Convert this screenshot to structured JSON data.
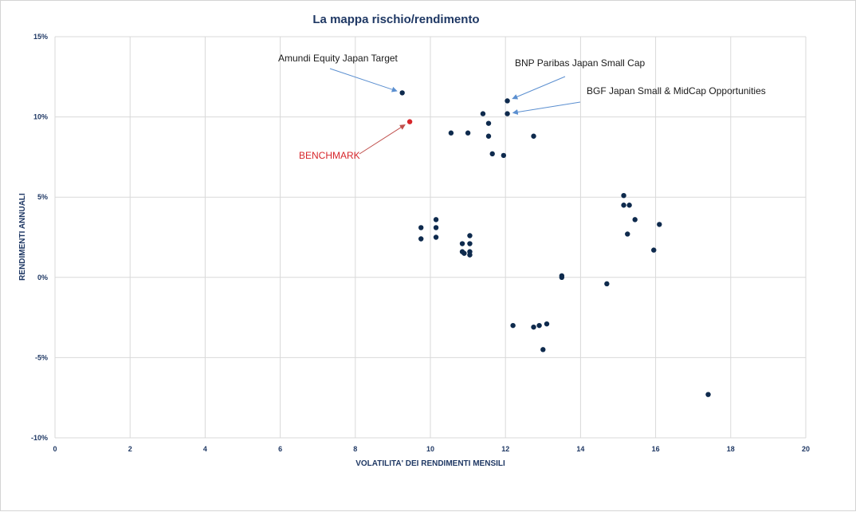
{
  "chart_data": {
    "type": "scatter",
    "title": "La mappa rischio/rendimento",
    "xlabel": "VOLATILITA' DEI RENDIMENTI MENSILI",
    "ylabel": "RENDIMENTI ANNUALI",
    "xlim": [
      0,
      20
    ],
    "ylim": [
      -10,
      15
    ],
    "grid": true,
    "x_ticks": [
      0,
      2,
      4,
      6,
      8,
      10,
      12,
      14,
      16,
      18,
      20
    ],
    "y_ticks": [
      -10,
      -5,
      0,
      5,
      10,
      15
    ],
    "x_tick_labels": [
      "0",
      "2",
      "4",
      "6",
      "8",
      "10",
      "12",
      "14",
      "16",
      "18",
      "20"
    ],
    "y_tick_labels": [
      "-10%",
      "-5%",
      "0%",
      "5%",
      "10%",
      "15%"
    ],
    "colors": {
      "points": "#0e2a4d",
      "benchmark": "#d7262b",
      "grid": "#d9d9d9",
      "arrow": "#5b8fd0",
      "benchmark_arrow": "#c0504d"
    },
    "points": [
      {
        "x": 9.25,
        "y": 11.5
      },
      {
        "x": 12.05,
        "y": 11.0
      },
      {
        "x": 12.05,
        "y": 10.2
      },
      {
        "x": 11.4,
        "y": 10.2
      },
      {
        "x": 11.55,
        "y": 9.6
      },
      {
        "x": 10.55,
        "y": 9.0
      },
      {
        "x": 11.0,
        "y": 9.0
      },
      {
        "x": 11.55,
        "y": 8.8
      },
      {
        "x": 12.75,
        "y": 8.8
      },
      {
        "x": 11.65,
        "y": 7.7
      },
      {
        "x": 11.95,
        "y": 7.6
      },
      {
        "x": 15.15,
        "y": 5.1
      },
      {
        "x": 15.15,
        "y": 4.5
      },
      {
        "x": 15.3,
        "y": 4.5
      },
      {
        "x": 15.45,
        "y": 3.6
      },
      {
        "x": 16.1,
        "y": 3.3
      },
      {
        "x": 15.25,
        "y": 2.7
      },
      {
        "x": 15.95,
        "y": 1.7
      },
      {
        "x": 10.15,
        "y": 3.6
      },
      {
        "x": 10.15,
        "y": 3.1
      },
      {
        "x": 9.75,
        "y": 3.1
      },
      {
        "x": 11.05,
        "y": 2.6
      },
      {
        "x": 10.15,
        "y": 2.5
      },
      {
        "x": 9.75,
        "y": 2.4
      },
      {
        "x": 10.85,
        "y": 2.1
      },
      {
        "x": 11.05,
        "y": 2.1
      },
      {
        "x": 10.85,
        "y": 1.6
      },
      {
        "x": 10.9,
        "y": 1.5
      },
      {
        "x": 11.05,
        "y": 1.6
      },
      {
        "x": 11.05,
        "y": 1.4
      },
      {
        "x": 13.5,
        "y": 0.1
      },
      {
        "x": 13.5,
        "y": 0.0
      },
      {
        "x": 14.7,
        "y": -0.4
      },
      {
        "x": 12.2,
        "y": -3.0
      },
      {
        "x": 12.75,
        "y": -3.1
      },
      {
        "x": 12.9,
        "y": -3.0
      },
      {
        "x": 13.1,
        "y": -2.9
      },
      {
        "x": 13.0,
        "y": -4.5
      },
      {
        "x": 17.4,
        "y": -7.3
      }
    ],
    "benchmark_point": {
      "x": 9.45,
      "y": 9.7
    },
    "annotations": [
      {
        "id": "amundi",
        "text": "Amundi Equity Japan Target",
        "target": {
          "x": 9.25,
          "y": 11.5
        }
      },
      {
        "id": "bnp",
        "text": "BNP Paribas Japan Small Cap",
        "target": {
          "x": 12.05,
          "y": 11.0
        }
      },
      {
        "id": "bgf",
        "text": "BGF Japan Small & MidCap Opportunities",
        "target": {
          "x": 12.05,
          "y": 10.2
        }
      },
      {
        "id": "benchmark",
        "text": "BENCHMARK",
        "target": {
          "x": 9.45,
          "y": 9.7
        }
      }
    ]
  }
}
